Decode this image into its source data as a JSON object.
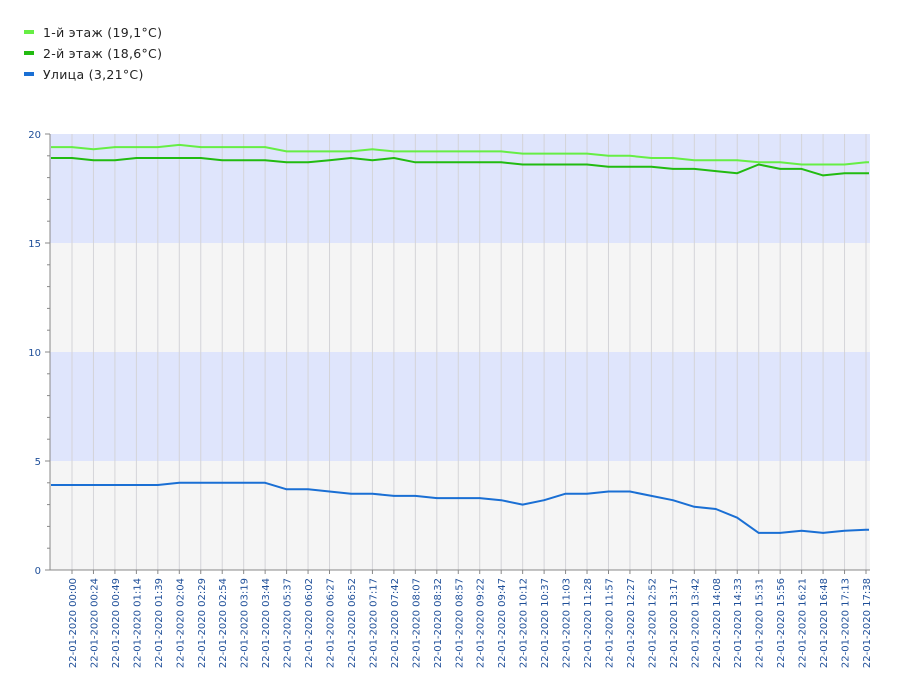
{
  "chart_data": {
    "type": "line",
    "title": "",
    "xlabel": "",
    "ylabel": "",
    "ylim": [
      0,
      20
    ],
    "yticks": [
      0,
      5,
      10,
      15,
      20
    ],
    "x_labels": [
      "22-01-2020 00:00",
      "22-01-2020 00:24",
      "22-01-2020 00:49",
      "22-01-2020 01:14",
      "22-01-2020 01:39",
      "22-01-2020 02:04",
      "22-01-2020 02:29",
      "22-01-2020 02:54",
      "22-01-2020 03:19",
      "22-01-2020 03:44",
      "22-01-2020 05:37",
      "22-01-2020 06:02",
      "22-01-2020 06:27",
      "22-01-2020 06:52",
      "22-01-2020 07:17",
      "22-01-2020 07:42",
      "22-01-2020 08:07",
      "22-01-2020 08:32",
      "22-01-2020 08:57",
      "22-01-2020 09:22",
      "22-01-2020 09:47",
      "22-01-2020 10:12",
      "22-01-2020 10:37",
      "22-01-2020 11:03",
      "22-01-2020 11:28",
      "22-01-2020 11:57",
      "22-01-2020 12:27",
      "22-01-2020 12:52",
      "22-01-2020 13:17",
      "22-01-2020 13:42",
      "22-01-2020 14:08",
      "22-01-2020 14:33",
      "22-01-2020 15:31",
      "22-01-2020 15:56",
      "22-01-2020 16:21",
      "22-01-2020 16:48",
      "22-01-2020 17:13",
      "22-01-2020 17:38"
    ],
    "series": [
      {
        "name": "1-й этаж (19,1°C)",
        "color": "#66ee44",
        "values": [
          19.4,
          19.3,
          19.4,
          19.4,
          19.4,
          19.5,
          19.4,
          19.4,
          19.4,
          19.4,
          19.2,
          19.2,
          19.2,
          19.2,
          19.3,
          19.2,
          19.2,
          19.2,
          19.2,
          19.2,
          19.2,
          19.1,
          19.1,
          19.1,
          19.1,
          19.0,
          19.0,
          18.9,
          18.9,
          18.8,
          18.8,
          18.8,
          18.7,
          18.7,
          18.6,
          18.6,
          18.6,
          18.7
        ]
      },
      {
        "name": "2-й этаж (18,6°C)",
        "color": "#22bb11",
        "values": [
          18.9,
          18.8,
          18.8,
          18.9,
          18.9,
          18.9,
          18.9,
          18.8,
          18.8,
          18.8,
          18.7,
          18.7,
          18.8,
          18.9,
          18.8,
          18.9,
          18.7,
          18.7,
          18.7,
          18.7,
          18.7,
          18.6,
          18.6,
          18.6,
          18.6,
          18.5,
          18.5,
          18.5,
          18.4,
          18.4,
          18.3,
          18.2,
          18.6,
          18.4,
          18.4,
          18.1,
          18.2,
          18.2
        ]
      },
      {
        "name": "Улица (3,21°C)",
        "color": "#1a6fd4",
        "values": [
          3.9,
          3.9,
          3.9,
          3.9,
          3.9,
          4.0,
          4.0,
          4.0,
          4.0,
          4.0,
          3.7,
          3.7,
          3.6,
          3.5,
          3.5,
          3.4,
          3.4,
          3.3,
          3.3,
          3.3,
          3.2,
          3.0,
          3.2,
          3.5,
          3.5,
          3.6,
          3.6,
          3.4,
          3.2,
          2.9,
          2.8,
          2.4,
          1.7,
          1.7,
          1.8,
          1.7,
          1.8,
          1.85
        ]
      }
    ],
    "legend_position": "top-left",
    "grid": true,
    "band_colors": [
      "#f5f5f5",
      "#dfe5fc"
    ]
  }
}
